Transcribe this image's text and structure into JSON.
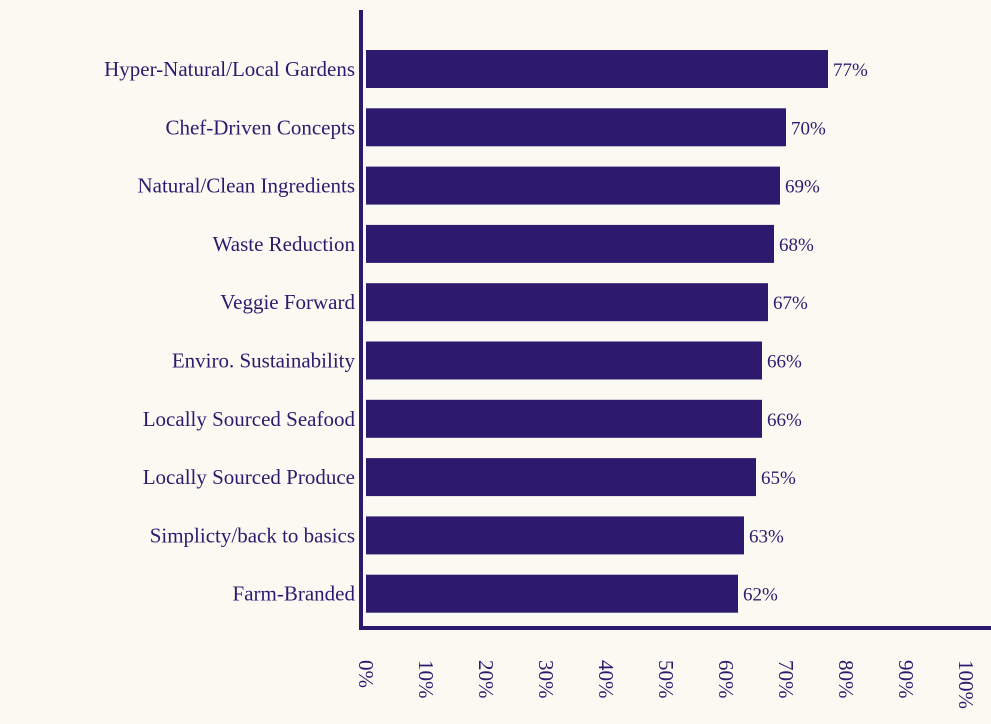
{
  "colors": {
    "background": "#fbfaf2",
    "bar": "#2d1a6e",
    "axis": "#2d1a6e",
    "text": "#2d1a6e"
  },
  "chart_data": {
    "type": "bar",
    "orientation": "horizontal",
    "categories": [
      "Hyper-Natural/Local Gardens",
      "Chef-Driven Concepts",
      "Natural/Clean Ingredients",
      "Waste Reduction",
      "Veggie Forward",
      "Enviro. Sustainability",
      "Locally Sourced Seafood",
      "Locally Sourced Produce",
      "Simplicty/back to basics",
      "Farm-Branded"
    ],
    "values": [
      77,
      70,
      69,
      68,
      67,
      66,
      66,
      65,
      63,
      62
    ],
    "value_labels": [
      "77%",
      "70%",
      "69%",
      "68%",
      "67%",
      "66%",
      "66%",
      "65%",
      "63%",
      "62%"
    ],
    "x_ticks": [
      0,
      10,
      20,
      30,
      40,
      50,
      60,
      70,
      80,
      90,
      100
    ],
    "x_tick_labels": [
      "0%",
      "10%",
      "20%",
      "30%",
      "40%",
      "50%",
      "60%",
      "70%",
      "80%",
      "90%",
      "100%"
    ],
    "xlim": [
      0,
      100
    ],
    "title": "",
    "xlabel": "",
    "ylabel": "",
    "grid": false,
    "legend": "none"
  }
}
